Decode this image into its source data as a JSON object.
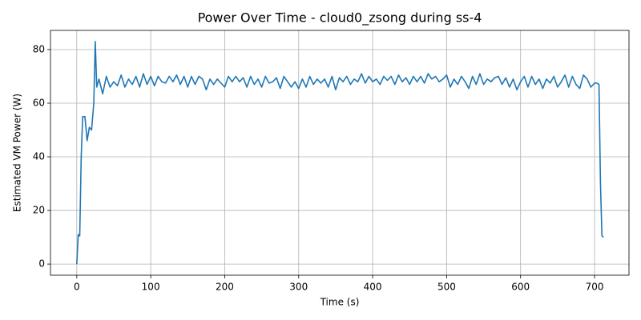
{
  "chart_data": {
    "type": "line",
    "title": "Power Over Time - cloud0_zsong during ss-4",
    "x_label": "Time (s)",
    "y_label": "Estimated VM Power (W)",
    "xlim": [
      -35.55,
      746.55
    ],
    "ylim": [
      -4.15,
      87.15
    ],
    "xticks": [
      0,
      100,
      200,
      300,
      400,
      500,
      600,
      700
    ],
    "yticks": [
      0,
      20,
      40,
      60,
      80
    ],
    "grid": true,
    "x": [
      0,
      2,
      4,
      6,
      8,
      11,
      14,
      17,
      20,
      23,
      25,
      27,
      30,
      35,
      40,
      45,
      50,
      55,
      60,
      65,
      70,
      75,
      80,
      85,
      90,
      95,
      100,
      105,
      110,
      115,
      120,
      125,
      130,
      135,
      140,
      145,
      150,
      155,
      160,
      165,
      170,
      175,
      180,
      185,
      190,
      195,
      200,
      205,
      210,
      215,
      220,
      225,
      230,
      235,
      240,
      245,
      250,
      255,
      260,
      265,
      270,
      275,
      280,
      285,
      290,
      295,
      300,
      305,
      310,
      315,
      320,
      325,
      330,
      335,
      340,
      345,
      350,
      355,
      360,
      365,
      370,
      375,
      380,
      385,
      390,
      395,
      400,
      405,
      410,
      415,
      420,
      425,
      430,
      435,
      440,
      445,
      450,
      455,
      460,
      465,
      470,
      475,
      480,
      485,
      490,
      495,
      500,
      505,
      510,
      515,
      520,
      525,
      530,
      535,
      540,
      545,
      550,
      555,
      560,
      565,
      570,
      575,
      580,
      585,
      590,
      595,
      600,
      605,
      610,
      615,
      620,
      625,
      630,
      635,
      640,
      645,
      650,
      655,
      660,
      665,
      670,
      675,
      680,
      685,
      690,
      695,
      700,
      703,
      706,
      708,
      710,
      712
    ],
    "series": [
      {
        "name": "power",
        "color": "#1f77b4",
        "values": [
          0,
          11,
          10.5,
          40,
          55,
          55,
          46,
          51,
          50,
          60,
          83,
          66,
          69,
          63.5,
          70,
          66,
          68,
          66.5,
          70.5,
          66,
          69,
          67,
          70,
          66,
          71,
          67,
          70,
          66.5,
          70,
          68,
          67.5,
          70,
          68,
          70.5,
          67,
          70,
          66,
          70,
          67,
          70,
          69,
          65,
          69,
          67,
          69,
          67.5,
          66,
          70,
          68,
          70,
          68,
          69.5,
          66,
          70,
          67,
          69,
          66,
          70,
          67.5,
          68,
          69.5,
          65.5,
          70,
          68,
          66,
          68,
          65.5,
          69,
          66,
          70,
          67,
          69,
          67.5,
          69,
          66,
          70,
          65,
          69.5,
          68,
          70,
          67,
          69,
          68,
          71,
          67.5,
          70,
          68,
          69,
          67,
          70,
          68.5,
          70,
          67,
          70.5,
          68,
          69.5,
          67,
          70,
          68,
          70,
          67.5,
          71,
          69,
          70,
          68,
          69,
          70.5,
          66,
          69,
          67,
          70,
          68,
          65.5,
          70,
          67,
          71,
          67,
          69,
          68,
          69.5,
          70,
          67,
          69.5,
          66,
          69,
          65,
          68,
          70,
          66,
          70,
          67,
          69,
          65.5,
          69,
          67.5,
          70,
          66,
          68,
          70.5,
          66,
          70,
          67,
          65.5,
          70.5,
          69,
          66,
          67.5,
          67.5,
          67,
          30,
          10.5,
          10
        ]
      }
    ]
  }
}
